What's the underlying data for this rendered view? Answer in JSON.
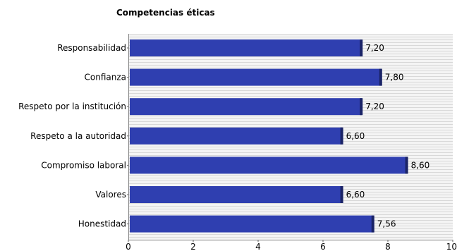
{
  "chart_data": {
    "type": "bar",
    "orientation": "horizontal",
    "title": "Competencias éticas",
    "categories": [
      "Responsabilidad",
      "Confianza",
      "Respeto por la institución",
      "Respeto a la autoridad",
      "Compromiso laboral",
      "Valores",
      "Honestidad"
    ],
    "values": [
      7.2,
      7.8,
      7.2,
      6.6,
      8.6,
      6.6,
      7.56
    ],
    "value_labels": [
      "7,20",
      "7,80",
      "7,20",
      "6,60",
      "8,60",
      "6,60",
      "7,56"
    ],
    "xlim": [
      0,
      10
    ],
    "x_ticks": [
      0,
      2,
      4,
      6,
      8,
      10
    ],
    "x_tick_labels": [
      "0",
      "2",
      "4",
      "6",
      "8",
      "10"
    ],
    "xlabel": "",
    "ylabel": "",
    "grid": "horizontal striped background",
    "bar_color": "#2f3fb0",
    "bar_edge_color": "#1a2366"
  }
}
